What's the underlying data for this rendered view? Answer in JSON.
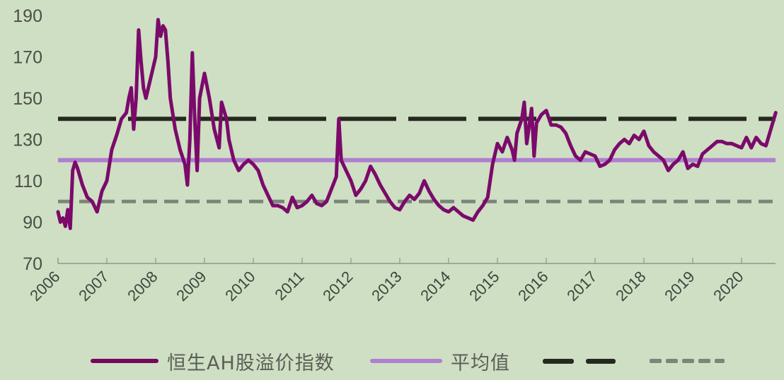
{
  "chart_data": {
    "type": "line",
    "title": "",
    "xlabel": "",
    "ylabel": "",
    "ylim": [
      70,
      190
    ],
    "yticks": [
      70,
      90,
      110,
      130,
      150,
      170,
      190
    ],
    "xticks": [
      "2006",
      "2007",
      "2008",
      "2009",
      "2010",
      "2011",
      "2012",
      "2013",
      "2014",
      "2015",
      "2016",
      "2017",
      "2018",
      "2019",
      "2020"
    ],
    "xlim": [
      2006,
      2020.7
    ],
    "grid": false,
    "legend_position": "bottom",
    "series": [
      {
        "name": "恒生AH股溢价指数",
        "color": "#7b0a6b",
        "style": "solid",
        "x": [
          2006.0,
          2006.05,
          2006.1,
          2006.15,
          2006.2,
          2006.25,
          2006.3,
          2006.35,
          2006.4,
          2006.5,
          2006.6,
          2006.7,
          2006.8,
          2006.9,
          2007.0,
          2007.1,
          2007.2,
          2007.3,
          2007.4,
          2007.45,
          2007.5,
          2007.55,
          2007.6,
          2007.65,
          2007.7,
          2007.75,
          2007.8,
          2007.9,
          2008.0,
          2008.05,
          2008.1,
          2008.15,
          2008.2,
          2008.25,
          2008.3,
          2008.4,
          2008.5,
          2008.6,
          2008.65,
          2008.7,
          2008.75,
          2008.8,
          2008.85,
          2008.9,
          2009.0,
          2009.1,
          2009.2,
          2009.3,
          2009.35,
          2009.45,
          2009.5,
          2009.6,
          2009.7,
          2009.8,
          2009.9,
          2010.0,
          2010.1,
          2010.2,
          2010.3,
          2010.4,
          2010.5,
          2010.6,
          2010.7,
          2010.8,
          2010.9,
          2011.0,
          2011.1,
          2011.2,
          2011.3,
          2011.4,
          2011.5,
          2011.6,
          2011.7,
          2011.75,
          2011.8,
          2011.9,
          2012.0,
          2012.1,
          2012.2,
          2012.3,
          2012.4,
          2012.5,
          2012.6,
          2012.7,
          2012.8,
          2012.9,
          2013.0,
          2013.1,
          2013.2,
          2013.3,
          2013.4,
          2013.5,
          2013.6,
          2013.7,
          2013.8,
          2013.9,
          2014.0,
          2014.1,
          2014.2,
          2014.3,
          2014.4,
          2014.5,
          2014.6,
          2014.7,
          2014.8,
          2014.9,
          2015.0,
          2015.1,
          2015.2,
          2015.3,
          2015.35,
          2015.4,
          2015.5,
          2015.55,
          2015.6,
          2015.7,
          2015.75,
          2015.8,
          2015.9,
          2016.0,
          2016.1,
          2016.2,
          2016.3,
          2016.4,
          2016.5,
          2016.6,
          2016.7,
          2016.8,
          2016.9,
          2017.0,
          2017.1,
          2017.2,
          2017.3,
          2017.4,
          2017.5,
          2017.6,
          2017.7,
          2017.8,
          2017.9,
          2018.0,
          2018.1,
          2018.2,
          2018.3,
          2018.4,
          2018.5,
          2018.6,
          2018.7,
          2018.8,
          2018.9,
          2019.0,
          2019.1,
          2019.2,
          2019.3,
          2019.4,
          2019.5,
          2019.6,
          2019.7,
          2019.8,
          2019.9,
          2020.0,
          2020.1,
          2020.2,
          2020.3,
          2020.4,
          2020.5,
          2020.6,
          2020.7
        ],
        "values": [
          95,
          90,
          92,
          88,
          96,
          87,
          115,
          119,
          116,
          108,
          102,
          100,
          95,
          105,
          110,
          125,
          132,
          140,
          143,
          150,
          155,
          135,
          150,
          183,
          168,
          155,
          150,
          160,
          170,
          188,
          180,
          185,
          183,
          168,
          150,
          135,
          125,
          118,
          108,
          130,
          172,
          140,
          115,
          150,
          162,
          150,
          135,
          126,
          148,
          140,
          130,
          120,
          115,
          118,
          120,
          118,
          115,
          108,
          103,
          98,
          98,
          97,
          95,
          102,
          97,
          98,
          100,
          103,
          99,
          98,
          100,
          106,
          112,
          140,
          120,
          115,
          110,
          103,
          106,
          110,
          117,
          113,
          108,
          104,
          100,
          97,
          96,
          100,
          103,
          101,
          104,
          110,
          105,
          101,
          98,
          96,
          95,
          97,
          95,
          93,
          92,
          91,
          95,
          98,
          102,
          118,
          128,
          124,
          131,
          125,
          120,
          133,
          140,
          148,
          128,
          145,
          122,
          138,
          142,
          144,
          137,
          137,
          136,
          133,
          127,
          122,
          120,
          124,
          123,
          122,
          117,
          118,
          120,
          125,
          128,
          130,
          128,
          132,
          130,
          134,
          127,
          124,
          122,
          120,
          115,
          118,
          120,
          124,
          116,
          118,
          117,
          123,
          125,
          127,
          129,
          129,
          128,
          128,
          127,
          126,
          131,
          126,
          131,
          128,
          127,
          135,
          143
        ]
      },
      {
        "name": "平均值",
        "color": "#b07fd0",
        "style": "solid",
        "value": 120
      },
      {
        "name": "",
        "color": "#26291f",
        "style": "long-dash",
        "value": 140
      },
      {
        "name": "",
        "color": "#7d857a",
        "style": "short-dash",
        "value": 100
      }
    ]
  },
  "legend": {
    "items": [
      {
        "label": "恒生AH股溢价指数"
      },
      {
        "label": "平均值"
      },
      {
        "label": ""
      },
      {
        "label": ""
      }
    ]
  }
}
